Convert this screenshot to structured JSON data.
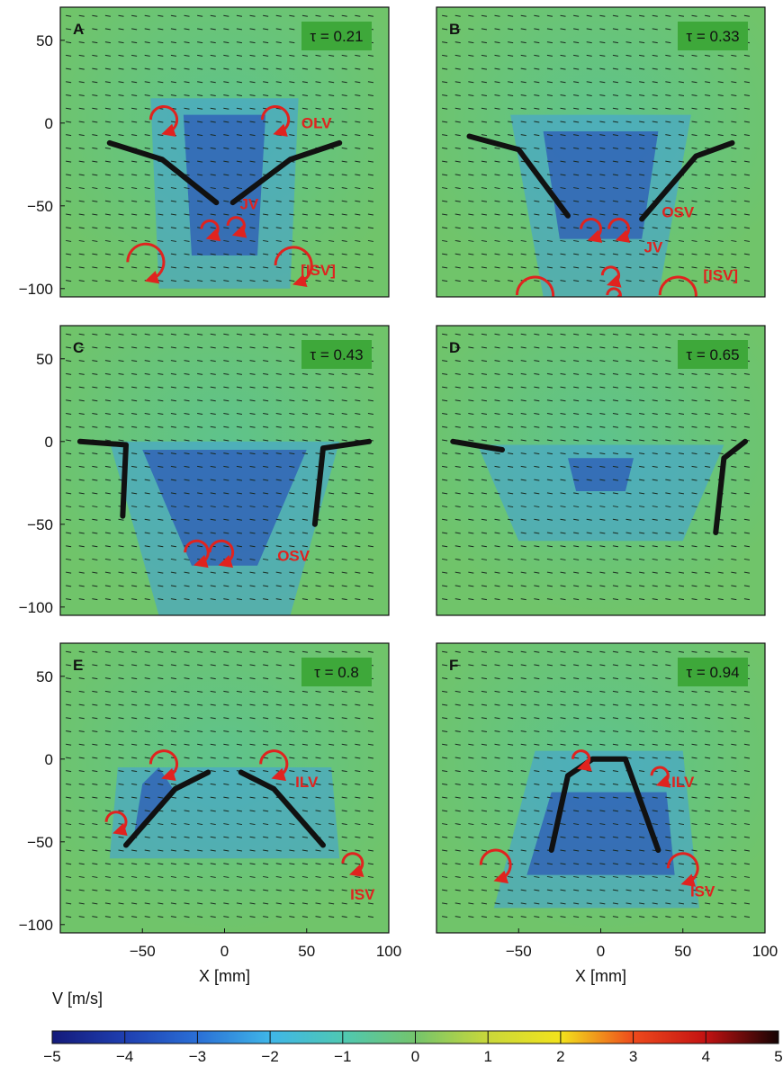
{
  "chart_data": {
    "type": "heatmap",
    "description_units": {
      "xlabel": "X [mm]",
      "colorbar_label": "V [m/s]"
    },
    "xlim": [
      -100,
      100
    ],
    "ylim": [
      -105,
      70
    ],
    "x_ticks": [
      "−50",
      "0",
      "50",
      "100"
    ],
    "y_ticks": [
      "50",
      "0",
      "−50",
      "−100"
    ],
    "xlabel": "X [mm]",
    "colorbar": {
      "label": "V [m/s]",
      "range": [
        -5,
        5
      ],
      "ticks": [
        "−5",
        "−4",
        "−3",
        "−2",
        "−1",
        "0",
        "1",
        "2",
        "3",
        "4",
        "5"
      ],
      "colors": [
        "#141a7a",
        "#1f3fb0",
        "#2a6fd6",
        "#3fb6e8",
        "#4fc8b2",
        "#74c46c",
        "#c9d83a",
        "#f2e31c",
        "#ee4a1c",
        "#c31212",
        "#140303"
      ]
    },
    "panels": [
      {
        "id": "A",
        "tau": "τ = 0.21",
        "labels": [
          {
            "text": "OLV",
            "x": 56,
            "y": -3
          },
          {
            "text": "JV",
            "x": 15,
            "y": -52
          },
          {
            "text": "[ISV]",
            "x": 57,
            "y": -92
          }
        ],
        "vortices": [
          {
            "x": -37,
            "y": 2,
            "r": 8
          },
          {
            "x": 31,
            "y": 2,
            "r": 8
          },
          {
            "x": -9,
            "y": -64,
            "r": 5
          },
          {
            "x": 7,
            "y": -62,
            "r": 5
          },
          {
            "x": -48,
            "y": -84,
            "r": 11
          },
          {
            "x": 42,
            "y": -86,
            "r": 11
          }
        ],
        "plate_lines": [
          [
            [
              -70,
              -12
            ],
            [
              -38,
              -22
            ],
            [
              -5,
              -48
            ]
          ],
          [
            [
              70,
              -12
            ],
            [
              40,
              -22
            ],
            [
              5,
              -48
            ]
          ]
        ]
      },
      {
        "id": "B",
        "tau": "τ = 0.33",
        "labels": [
          {
            "text": "OSV",
            "x": 47,
            "y": -57
          },
          {
            "text": "JV",
            "x": 32,
            "y": -78
          },
          {
            "text": "[ISV]",
            "x": 73,
            "y": -95
          }
        ],
        "vortices": [
          {
            "x": -6,
            "y": -64,
            "r": 6
          },
          {
            "x": 11,
            "y": -64,
            "r": 6
          },
          {
            "x": 6,
            "y": -92,
            "r": 5
          },
          {
            "x": -40,
            "y": -104,
            "r": 11
          },
          {
            "x": 47,
            "y": -104,
            "r": 11
          },
          {
            "x": 8,
            "y": -104,
            "r": 4
          }
        ],
        "plate_lines": [
          [
            [
              -80,
              -8
            ],
            [
              -50,
              -16
            ],
            [
              -20,
              -56
            ]
          ],
          [
            [
              80,
              -12
            ],
            [
              58,
              -20
            ],
            [
              25,
              -58
            ]
          ]
        ]
      },
      {
        "id": "C",
        "tau": "τ = 0.43",
        "labels": [
          {
            "text": "OSV",
            "x": 42,
            "y": -72
          }
        ],
        "vortices": [
          {
            "x": -17,
            "y": -67,
            "r": 7
          },
          {
            "x": -2,
            "y": -67,
            "r": 7
          }
        ],
        "plate_lines": [
          [
            [
              -88,
              0
            ],
            [
              -60,
              -2
            ],
            [
              -62,
              -45
            ]
          ],
          [
            [
              88,
              0
            ],
            [
              60,
              -4
            ],
            [
              55,
              -50
            ]
          ]
        ]
      },
      {
        "id": "D",
        "tau": "τ = 0.65",
        "labels": [],
        "vortices": [],
        "plate_lines": [
          [
            [
              -90,
              0
            ],
            [
              -60,
              -5
            ]
          ],
          [
            [
              88,
              0
            ],
            [
              75,
              -10
            ],
            [
              70,
              -55
            ]
          ]
        ]
      },
      {
        "id": "E",
        "tau": "τ = 0.8",
        "labels": [
          {
            "text": "ILV",
            "x": 50,
            "y": -17
          },
          {
            "text": "ISV",
            "x": 84,
            "y": -85
          }
        ],
        "vortices": [
          {
            "x": -37,
            "y": -3,
            "r": 8
          },
          {
            "x": 30,
            "y": -3,
            "r": 8
          },
          {
            "x": -66,
            "y": -38,
            "r": 6
          },
          {
            "x": 78,
            "y": -63,
            "r": 6
          }
        ],
        "plate_lines": [
          [
            [
              -60,
              -52
            ],
            [
              -30,
              -18
            ],
            [
              -10,
              -8
            ]
          ],
          [
            [
              60,
              -52
            ],
            [
              30,
              -18
            ],
            [
              10,
              -8
            ]
          ]
        ]
      },
      {
        "id": "F",
        "tau": "τ = 0.94",
        "labels": [
          {
            "text": "ILV",
            "x": 50,
            "y": -17
          },
          {
            "text": "ISV",
            "x": 62,
            "y": -83
          }
        ],
        "vortices": [
          {
            "x": -12,
            "y": 0,
            "r": 5
          },
          {
            "x": 36,
            "y": -10,
            "r": 5
          },
          {
            "x": -64,
            "y": -64,
            "r": 9
          },
          {
            "x": 50,
            "y": -66,
            "r": 9
          }
        ],
        "plate_lines": [
          [
            [
              -30,
              -55
            ],
            [
              -20,
              -10
            ],
            [
              -5,
              0
            ],
            [
              15,
              0
            ],
            [
              35,
              -55
            ]
          ]
        ]
      }
    ]
  }
}
